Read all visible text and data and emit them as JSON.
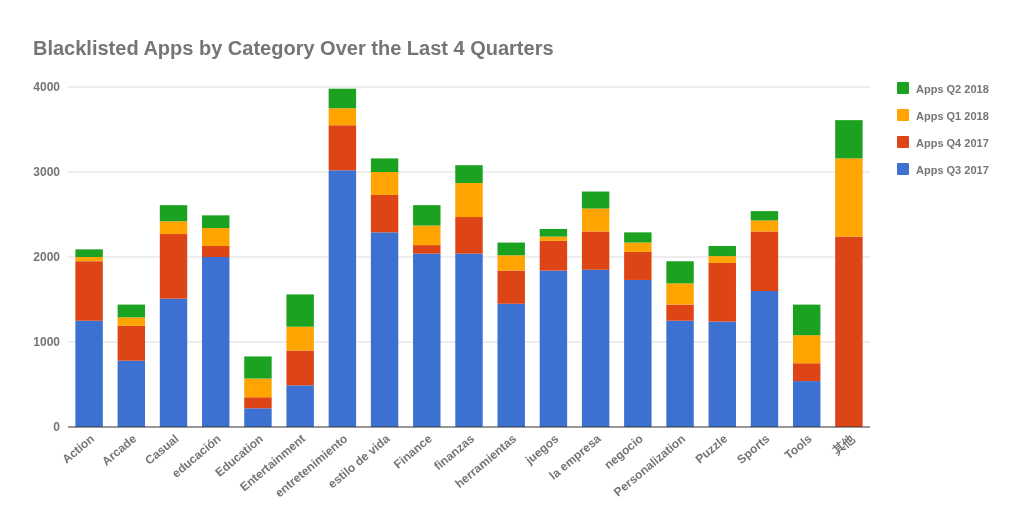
{
  "chart_data": {
    "type": "bar",
    "title": "Blacklisted Apps by Category Over the Last 4 Quarters",
    "categories": [
      "Action",
      "Arcade",
      "Casual",
      "educación",
      "Education",
      "Entertainment",
      "entretenimiento",
      "estilo de vida",
      "Finance",
      "finanzas",
      "herramientas",
      "juegos",
      "la empresa",
      "negocio",
      "Personalization",
      "Puzzle",
      "Sports",
      "Tools",
      "其他"
    ],
    "stacked": true,
    "series": [
      {
        "name": "Apps Q3 2017",
        "color": "#3c71d1",
        "values": [
          1250,
          780,
          1510,
          2000,
          220,
          490,
          3020,
          2290,
          2040,
          2040,
          1450,
          1840,
          1850,
          1730,
          1250,
          1240,
          1600,
          540,
          0
        ]
      },
      {
        "name": "Apps Q4 2017",
        "color": "#dd4416",
        "values": [
          700,
          410,
          760,
          130,
          130,
          410,
          530,
          440,
          100,
          430,
          390,
          350,
          450,
          330,
          190,
          690,
          700,
          210,
          2240
        ]
      },
      {
        "name": "Apps Q1 2018",
        "color": "#ffa400",
        "values": [
          50,
          100,
          150,
          210,
          220,
          280,
          200,
          270,
          230,
          400,
          180,
          50,
          270,
          110,
          250,
          80,
          130,
          330,
          920
        ]
      },
      {
        "name": "Apps Q2 2018",
        "color": "#1ca221",
        "values": [
          90,
          150,
          190,
          150,
          260,
          380,
          230,
          160,
          240,
          210,
          150,
          90,
          200,
          120,
          260,
          120,
          110,
          360,
          450
        ]
      }
    ],
    "ylim": [
      0,
      4000
    ],
    "yticks": [
      0,
      1000,
      2000,
      3000,
      4000
    ],
    "grid": "y",
    "legend": "right"
  }
}
